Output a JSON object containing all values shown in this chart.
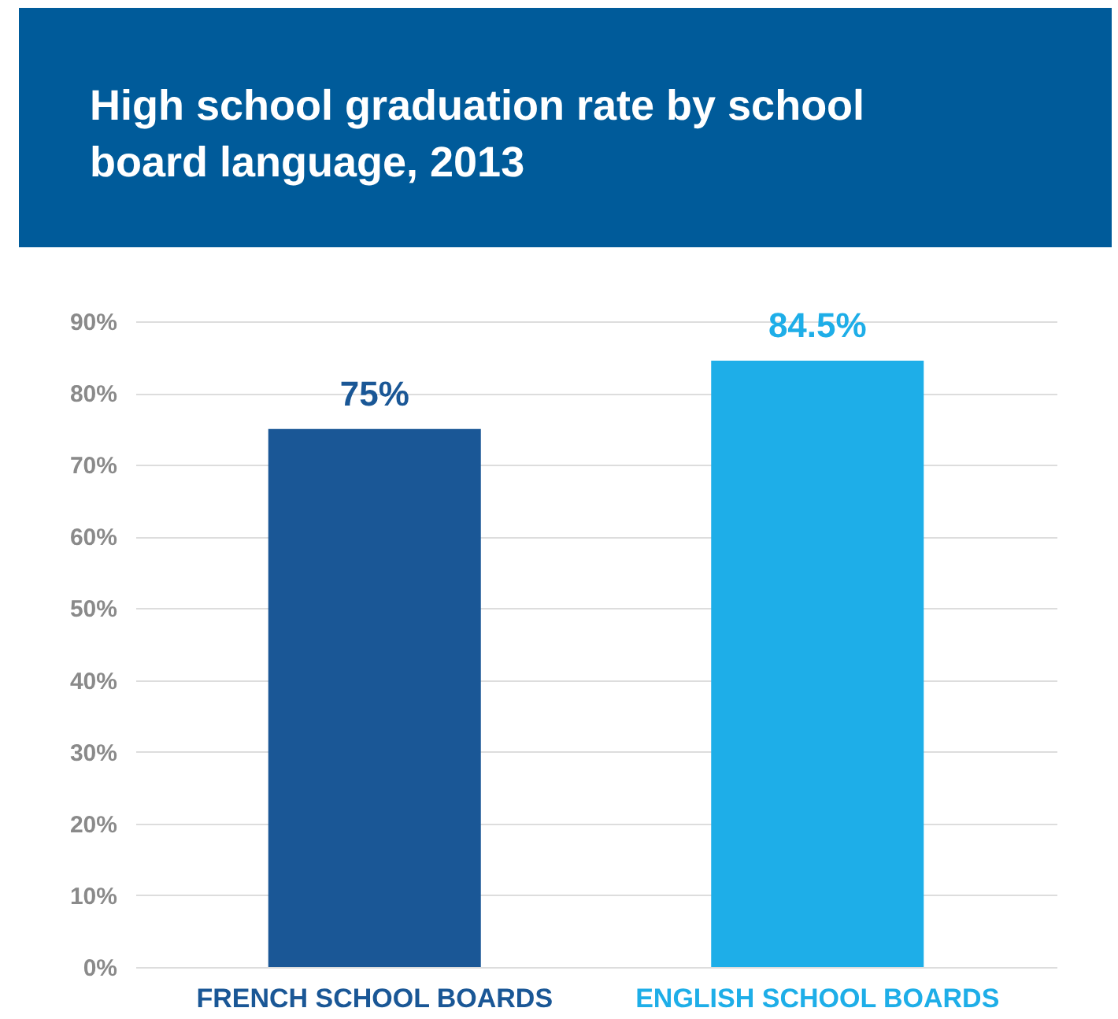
{
  "chart_data": {
    "type": "bar",
    "title": "High school graduation rate by school board language, 2013",
    "categories": [
      "FRENCH SCHOOL BOARDS",
      "ENGLISH SCHOOL BOARDS"
    ],
    "values": [
      75,
      84.5
    ],
    "colors": [
      "#1a5796",
      "#1eaee8"
    ],
    "value_labels": [
      "75%",
      "84.5%"
    ],
    "ylim": [
      0,
      90
    ],
    "yticks": [
      {
        "value": 0,
        "label": "0%"
      },
      {
        "value": 10,
        "label": "10%"
      },
      {
        "value": 20,
        "label": "20%"
      },
      {
        "value": 30,
        "label": "30%"
      },
      {
        "value": 40,
        "label": "40%"
      },
      {
        "value": 50,
        "label": "50%"
      },
      {
        "value": 60,
        "label": "60%"
      },
      {
        "value": 70,
        "label": "70%"
      },
      {
        "value": 80,
        "label": "80%"
      },
      {
        "value": 90,
        "label": "90%"
      }
    ],
    "grid": "y"
  }
}
